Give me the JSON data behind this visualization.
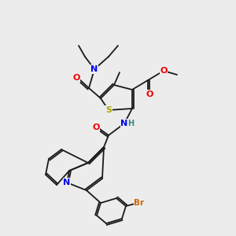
{
  "bg_color": "#ececec",
  "bond_color": "#1a1a1a",
  "colors": {
    "N": "#0000ee",
    "O": "#ee0000",
    "S": "#aaaa00",
    "Br": "#cc6600",
    "H": "#338888"
  },
  "font_size": 7.5,
  "lw": 1.3
}
